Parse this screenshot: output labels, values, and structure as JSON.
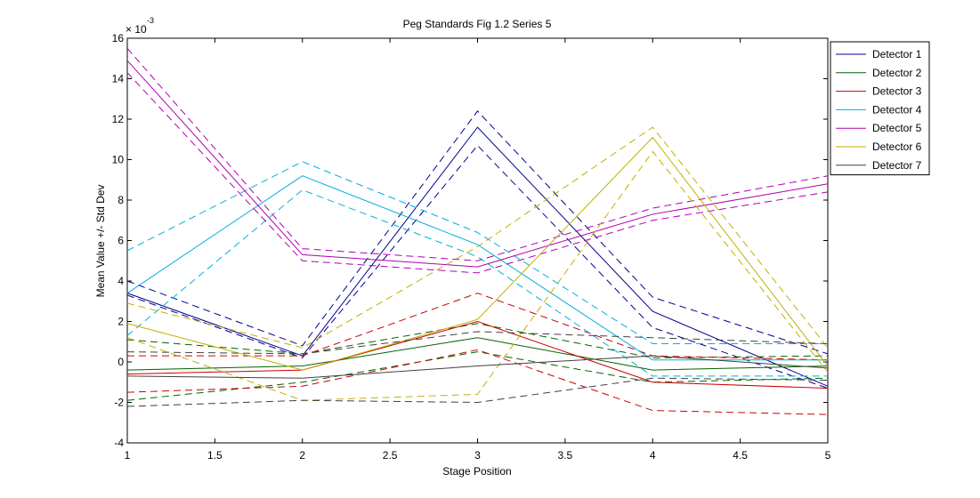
{
  "chart_data": {
    "type": "line",
    "title": "Peg Standards Fig 1.2 Series 5",
    "xlabel": "Stage Position",
    "ylabel": "Mean Value +/- Std Dev",
    "y_exponent_label": "× 10",
    "y_exponent": "-3",
    "xlim": [
      1,
      5
    ],
    "ylim": [
      -4,
      16
    ],
    "x_ticks": [
      "1",
      "1.5",
      "2",
      "2.5",
      "3",
      "3.5",
      "4",
      "4.5",
      "5"
    ],
    "y_ticks": [
      "-4",
      "-2",
      "0",
      "2",
      "4",
      "6",
      "8",
      "10",
      "12",
      "14",
      "16"
    ],
    "grid": false,
    "legend_position": "top-right",
    "y_scale_note": "values in units of 10^-3",
    "x": [
      1,
      2,
      3,
      4,
      5
    ],
    "series": [
      {
        "name": "Detector 1",
        "color": "#00008f",
        "mean": [
          3.4,
          0.3,
          11.6,
          2.5,
          -1.2
        ],
        "upper": [
          4.0,
          0.8,
          12.4,
          3.2,
          0.4
        ],
        "lower": [
          3.3,
          0.2,
          10.7,
          1.7,
          -1.3
        ]
      },
      {
        "name": "Detector 2",
        "color": "#006400",
        "mean": [
          -0.4,
          -0.2,
          1.2,
          -0.4,
          -0.2
        ],
        "upper": [
          1.1,
          0.4,
          1.9,
          0.2,
          0.3
        ],
        "lower": [
          -1.9,
          -1.0,
          0.5,
          -1.0,
          -0.8
        ]
      },
      {
        "name": "Detector 3",
        "color": "#cc0000",
        "mean": [
          -0.6,
          -0.4,
          2.0,
          -1.0,
          -1.3
        ],
        "upper": [
          0.3,
          0.3,
          3.4,
          0.3,
          0.1
        ],
        "lower": [
          -1.5,
          -1.2,
          0.6,
          -2.4,
          -2.6
        ]
      },
      {
        "name": "Detector 4",
        "color": "#00b0e0",
        "mean": [
          3.4,
          9.2,
          5.8,
          0.1,
          0.1
        ],
        "upper": [
          5.5,
          9.9,
          6.4,
          0.9,
          0.9
        ],
        "lower": [
          1.3,
          8.5,
          5.2,
          -0.7,
          -0.7
        ]
      },
      {
        "name": "Detector 5",
        "color": "#b000b0",
        "mean": [
          14.9,
          5.3,
          4.7,
          7.3,
          8.8
        ],
        "upper": [
          15.5,
          5.6,
          5.0,
          7.6,
          9.2
        ],
        "lower": [
          14.3,
          5.0,
          4.4,
          7.0,
          8.4
        ]
      },
      {
        "name": "Detector 6",
        "color": "#c0b000",
        "mean": [
          1.9,
          -0.4,
          2.1,
          11.1,
          -0.2
        ],
        "upper": [
          2.9,
          0.7,
          5.7,
          11.6,
          0.7
        ],
        "lower": [
          1.2,
          -1.9,
          -1.6,
          10.4,
          -0.5
        ]
      },
      {
        "name": "Detector 7",
        "color": "#404040",
        "mean": [
          -0.7,
          -0.8,
          -0.2,
          0.3,
          -0.3
        ],
        "upper": [
          0.5,
          0.4,
          1.5,
          1.2,
          0.9
        ],
        "lower": [
          -2.2,
          -1.9,
          -2.0,
          -0.8,
          -0.9
        ]
      }
    ]
  }
}
